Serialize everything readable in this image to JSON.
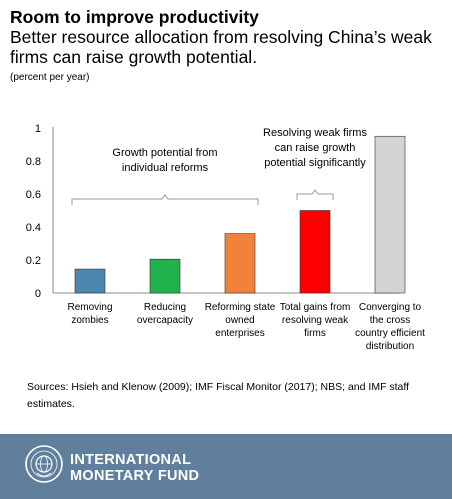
{
  "chart_data": {
    "type": "bar",
    "title": "Room to improve productivity",
    "subtitle": "Better resource allocation from resolving China’s weak firms can raise growth potential.",
    "ylabel": "(percent per year)",
    "ylim": [
      0,
      1
    ],
    "yticks": [
      "0",
      "0.2",
      "0.4",
      "0.6",
      "0.8",
      "1"
    ],
    "grid": false,
    "categories": [
      [
        "Removing",
        "zombies"
      ],
      [
        "Reducing",
        "overcapacity"
      ],
      [
        "Reforming state",
        "owned",
        "enterprises"
      ],
      [
        "Total gains from",
        "resolving weak",
        "firms"
      ],
      [
        "Converging to",
        "the cross",
        "country efficient",
        "distribution"
      ]
    ],
    "values": [
      0.145,
      0.205,
      0.36,
      0.5,
      0.95
    ],
    "colors": [
      "#4a86ad",
      "#22b24c",
      "#f2823a",
      "#ff0000",
      "#d4d4d4"
    ],
    "annotations": [
      {
        "lines": [
          "Growth potential from",
          "individual reforms"
        ],
        "bracket_from": 0,
        "bracket_to": 2
      },
      {
        "lines": [
          "Resolving weak firms",
          "can raise growth",
          "potential significantly"
        ],
        "bracket_from": 3,
        "bracket_to": 3
      }
    ]
  },
  "sources": "Sources:  Hsieh and Klenow (2009); IMF Fiscal Monitor (2017); NBS; and IMF staff estimates.",
  "footer": {
    "brand_line1": "INTERNATIONAL",
    "brand_line2": "MONETARY FUND",
    "seal_icon": "imf-seal-icon"
  }
}
